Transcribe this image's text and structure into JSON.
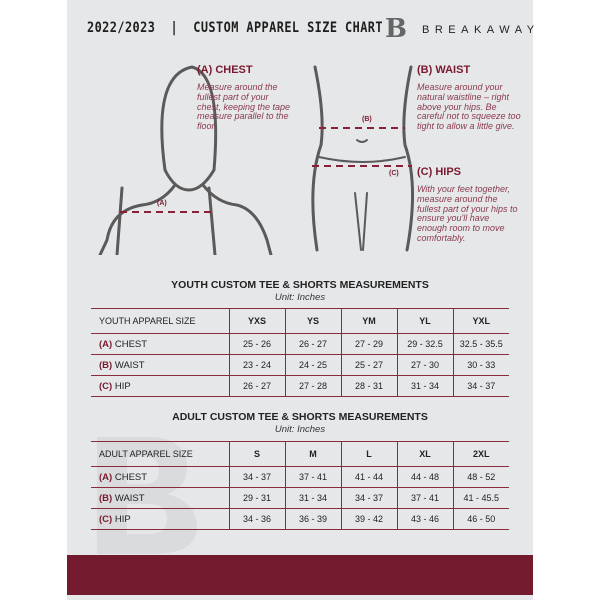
{
  "header": {
    "title": "2022/2023  |  CUSTOM APPAREL SIZE CHART",
    "brand": "BREAKAWAY",
    "logo_letter": "B"
  },
  "guide": {
    "chest": {
      "title": "(A) CHEST",
      "text": "Measure around the fullest part of your chest, keeping the tape measure parallel to the floor",
      "marker": "(A)"
    },
    "waist": {
      "title": "(B) WAIST",
      "text": "Measure around your natural waistline – right above your hips. Be careful not to squeeze too tight to allow a little give.",
      "marker": "(B)"
    },
    "hips": {
      "title": "(C) HIPS",
      "text": "With your feet together, measure around the fullest part of your hips to ensure you'll have enough room to move comfortably.",
      "marker": "(C)"
    }
  },
  "colors": {
    "accent": "#7a1a30",
    "footer": "#731a2f",
    "page": "#e6e7e9"
  },
  "youth": {
    "title": "YOUTH CUSTOM TEE & SHORTS MEASUREMENTS",
    "unit": "Unit: Inches",
    "header": "YOUTH APPAREL SIZE",
    "sizes": [
      "YXS",
      "YS",
      "YM",
      "YL",
      "YXL"
    ],
    "rows": [
      {
        "letter": "(A)",
        "label": "CHEST",
        "values": [
          "25 - 26",
          "26 - 27",
          "27 - 29",
          "29 - 32.5",
          "32.5 - 35.5"
        ]
      },
      {
        "letter": "(B)",
        "label": "WAIST",
        "values": [
          "23 - 24",
          "24 - 25",
          "25 - 27",
          "27 - 30",
          "30 - 33"
        ]
      },
      {
        "letter": "(C)",
        "label": "HIP",
        "values": [
          "26 - 27",
          "27 - 28",
          "28 - 31",
          "31 - 34",
          "34 - 37"
        ]
      }
    ]
  },
  "adult": {
    "title": "ADULT CUSTOM TEE & SHORTS MEASUREMENTS",
    "unit": "Unit: Inches",
    "header": "ADULT APPAREL SIZE",
    "sizes": [
      "S",
      "M",
      "L",
      "XL",
      "2XL"
    ],
    "rows": [
      {
        "letter": "(A)",
        "label": "CHEST",
        "values": [
          "34 - 37",
          "37 - 41",
          "41 - 44",
          "44 - 48",
          "48 - 52"
        ]
      },
      {
        "letter": "(B)",
        "label": "WAIST",
        "values": [
          "29 - 31",
          "31 - 34",
          "34 - 37",
          "37 - 41",
          "41 - 45.5"
        ]
      },
      {
        "letter": "(C)",
        "label": "HIP",
        "values": [
          "34 - 36",
          "36 - 39",
          "39 - 42",
          "43 - 46",
          "46 - 50"
        ]
      }
    ]
  }
}
